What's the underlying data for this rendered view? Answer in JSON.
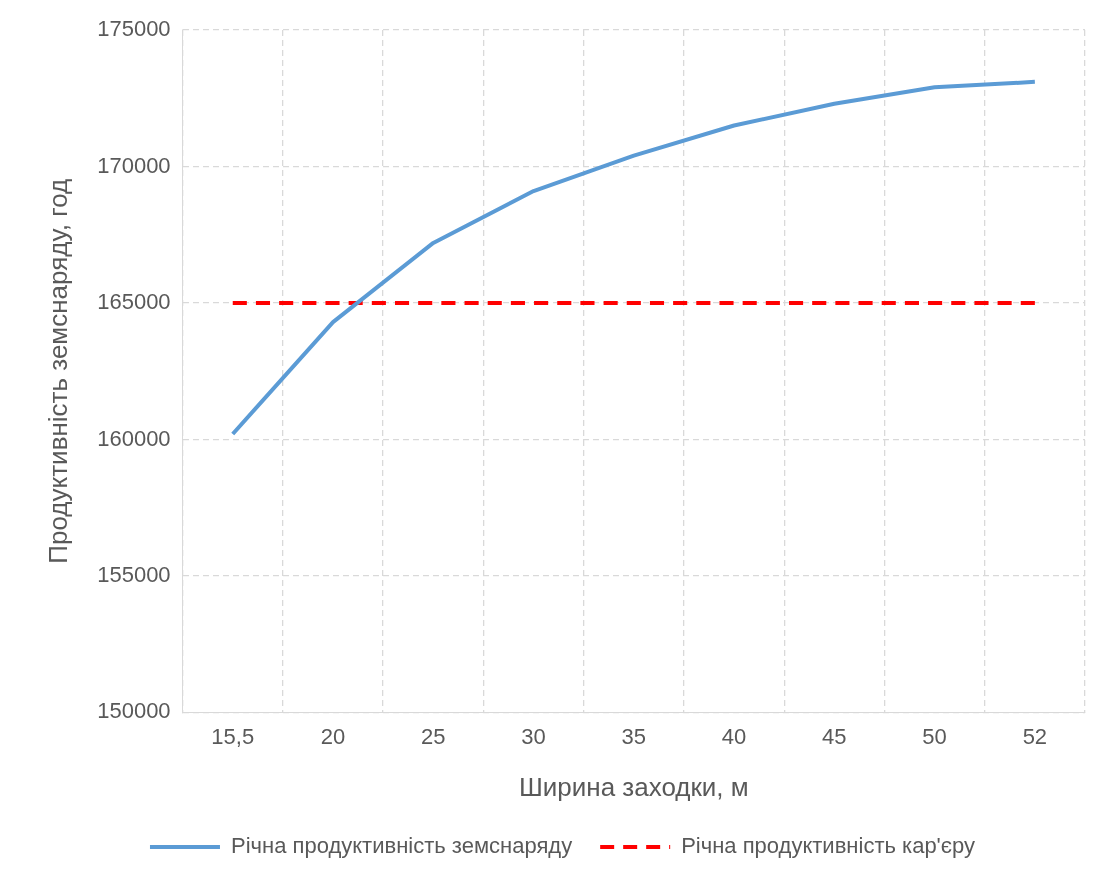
{
  "chart_data": {
    "type": "line",
    "xlabel": "Ширина заходки, м",
    "ylabel": "Продуктивність земснаряду, год",
    "categories": [
      "15,5",
      "20",
      "25",
      "30",
      "35",
      "40",
      "45",
      "50",
      "52"
    ],
    "series": [
      {
        "name": "Річна продуктивність земснаряду",
        "color": "#5b9bd5",
        "line_style": "solid",
        "values": [
          160200,
          164300,
          167200,
          169100,
          170400,
          171500,
          172300,
          172900,
          173100
        ]
      },
      {
        "name": "Річна продуктивність кар'єру",
        "color": "#ff0000",
        "line_style": "dashed",
        "values": [
          165000,
          165000,
          165000,
          165000,
          165000,
          165000,
          165000,
          165000,
          165000
        ]
      }
    ],
    "ylim": [
      150000,
      175000
    ],
    "yticks": [
      150000,
      155000,
      160000,
      165000,
      170000,
      175000
    ],
    "grid": true,
    "legend": "bottom",
    "marker": "none"
  }
}
